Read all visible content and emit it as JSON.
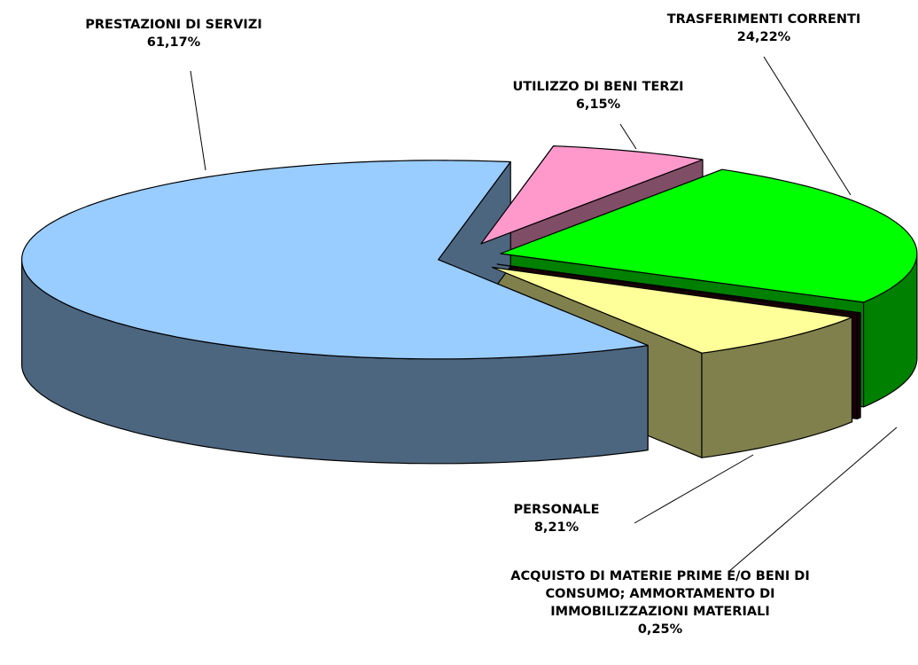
{
  "chart_data": {
    "type": "pie",
    "categories": [
      "UTILIZZO DI BENI TERZI",
      "TRASFERIMENTI CORRENTI",
      "ACQUISTO DI MATERIE PRIME E/O BENI DI CONSUMO; AMMORTAMENTO DI IMMOBILIZZAZIONI MATERIALI",
      "PERSONALE",
      "PRESTAZIONI DI SERVIZI"
    ],
    "values": [
      6.15,
      24.22,
      0.25,
      8.21,
      61.17
    ],
    "value_labels": [
      "6,15%",
      "24,22%",
      "0,25%",
      "8,21%",
      "61,17%"
    ],
    "colors": [
      "#ff99cc",
      "#00ff00",
      "#330011",
      "#ffff99",
      "#99ccff"
    ]
  }
}
